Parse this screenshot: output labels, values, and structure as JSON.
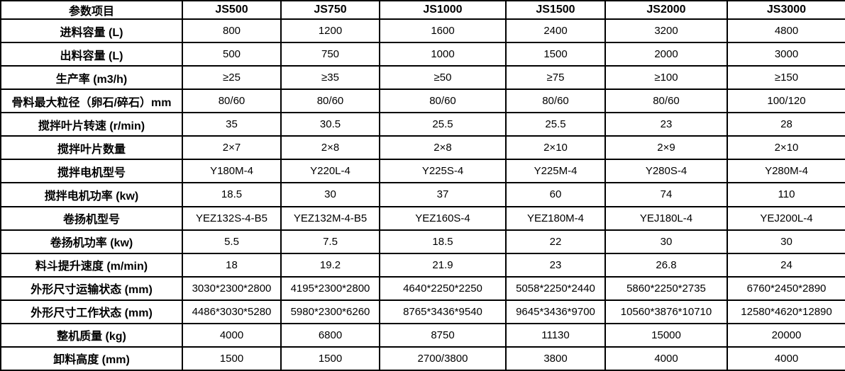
{
  "table": {
    "header": [
      "参数项目",
      "JS500",
      "JS750",
      "JS1000",
      "JS1500",
      "JS2000",
      "JS3000"
    ],
    "rows": [
      {
        "label": "进料容量 (L)",
        "values": [
          "800",
          "1200",
          "1600",
          "2400",
          "3200",
          "4800"
        ]
      },
      {
        "label": "出料容量 (L)",
        "values": [
          "500",
          "750",
          "1000",
          "1500",
          "2000",
          "3000"
        ]
      },
      {
        "label": "生产率 (m3/h)",
        "values": [
          "≥25",
          "≥35",
          "≥50",
          "≥75",
          "≥100",
          "≥150"
        ]
      },
      {
        "label": "骨料最大粒径（卵石/碎石）mm",
        "values": [
          "80/60",
          "80/60",
          "80/60",
          "80/60",
          "80/60",
          "100/120"
        ]
      },
      {
        "label": "搅拌叶片转速 (r/min)",
        "values": [
          "35",
          "30.5",
          "25.5",
          "25.5",
          "23",
          "28"
        ]
      },
      {
        "label": "搅拌叶片数量",
        "values": [
          "2×7",
          "2×8",
          "2×8",
          "2×10",
          "2×9",
          "2×10"
        ]
      },
      {
        "label": "搅拌电机型号",
        "values": [
          "Y180M-4",
          "Y220L-4",
          "Y225S-4",
          "Y225M-4",
          "Y280S-4",
          "Y280M-4"
        ]
      },
      {
        "label": "搅拌电机功率 (kw)",
        "values": [
          "18.5",
          "30",
          "37",
          "60",
          "74",
          "110"
        ]
      },
      {
        "label": "卷扬机型号",
        "values": [
          "YEZ132S-4-B5",
          "YEZ132M-4-B5",
          "YEZ160S-4",
          "YEZ180M-4",
          "YEJ180L-4",
          "YEJ200L-4"
        ]
      },
      {
        "label": "卷扬机功率 (kw)",
        "values": [
          "5.5",
          "7.5",
          "18.5",
          "22",
          "30",
          "30"
        ]
      },
      {
        "label": "料斗提升速度 (m/min)",
        "values": [
          "18",
          "19.2",
          "21.9",
          "23",
          "26.8",
          "24"
        ]
      },
      {
        "label": "外形尺寸运输状态 (mm)",
        "values": [
          "3030*2300*2800",
          "4195*2300*2800",
          "4640*2250*2250",
          "5058*2250*2440",
          "5860*2250*2735",
          "6760*2450*2890"
        ]
      },
      {
        "label": "外形尺寸工作状态 (mm)",
        "values": [
          "4486*3030*5280",
          "5980*2300*6260",
          "8765*3436*9540",
          "9645*3436*9700",
          "10560*3876*10710",
          "12580*4620*12890"
        ]
      },
      {
        "label": "整机质量 (kg)",
        "values": [
          "4000",
          "6800",
          "8750",
          "11130",
          "15000",
          "20000"
        ]
      },
      {
        "label": "卸料高度 (mm)",
        "values": [
          "1500",
          "1500",
          "2700/3800",
          "3800",
          "4000",
          "4000"
        ]
      }
    ]
  }
}
